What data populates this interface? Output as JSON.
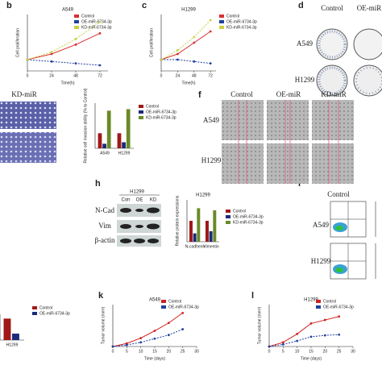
{
  "chart_data": [
    {
      "type": "line",
      "title": "A549",
      "x": [
        0,
        24,
        48,
        72
      ],
      "xlim": [
        0,
        80
      ],
      "xticks": [
        0,
        24,
        48,
        72
      ],
      "ylim": [
        0,
        1.5
      ],
      "xlabel": "Time(h)",
      "ylabel": "Cell proliferation",
      "series": [
        {
          "name": "Control",
          "color": "#d83030",
          "values": [
            0.3,
            0.45,
            0.7,
            1.0
          ]
        },
        {
          "name": "OE-miR-6734-3p",
          "color": "#2040a0",
          "values": [
            0.3,
            0.25,
            0.2,
            0.15
          ]
        },
        {
          "name": "KD-miR-6734-3p",
          "color": "#c8d040",
          "values": [
            0.3,
            0.5,
            0.85,
            1.3
          ]
        }
      ]
    },
    {
      "type": "line",
      "title": "H1299",
      "x": [
        0,
        24,
        48,
        72
      ],
      "xlim": [
        0,
        80
      ],
      "xticks": [
        0,
        24,
        48,
        72
      ],
      "ylim": [
        0,
        1.5
      ],
      "xlabel": "Time(h)",
      "ylabel": "Cell proliferation",
      "series": [
        {
          "name": "Control",
          "color": "#d83030",
          "values": [
            0.3,
            0.45,
            0.75,
            1.05
          ]
        },
        {
          "name": "OE-miR-6734-3p",
          "color": "#2040a0",
          "values": [
            0.3,
            0.3,
            0.25,
            0.2
          ]
        },
        {
          "name": "KD-miR-6734-3p",
          "color": "#c8d040",
          "values": [
            0.3,
            0.55,
            0.9,
            1.35
          ]
        }
      ]
    },
    {
      "type": "bar",
      "categories": [
        "A549",
        "H1299"
      ],
      "ylim": [
        0,
        3
      ],
      "ylabel": "Relative cell invasion ability (% to Control)",
      "series": [
        {
          "name": "Control",
          "color": "#a01818",
          "values": [
            1.0,
            1.0
          ]
        },
        {
          "name": "OE-miR-6734-3p",
          "color": "#1c2a78",
          "values": [
            0.3,
            0.4
          ]
        },
        {
          "name": "KD-miR-6734-3p",
          "color": "#6a8a28",
          "values": [
            2.5,
            2.6
          ]
        }
      ]
    },
    {
      "type": "bar",
      "title": "H1299",
      "categories": [
        "N-cadherin",
        "Vimentin"
      ],
      "ylim": [
        0,
        2
      ],
      "ylabel": "Relative protein expressions",
      "series": [
        {
          "name": "Control",
          "color": "#a01818",
          "values": [
            1.0,
            1.0
          ]
        },
        {
          "name": "OE-miR-6734-3p",
          "color": "#1c2a78",
          "values": [
            0.4,
            0.5
          ]
        },
        {
          "name": "KD-miR-6734-3p",
          "color": "#6a8a28",
          "values": [
            1.6,
            1.5
          ]
        }
      ]
    },
    {
      "type": "bar",
      "categories": [
        "H1299"
      ],
      "ylim": [
        0,
        6
      ],
      "series": [
        {
          "name": "Control",
          "color": "#a01818",
          "values": [
            5
          ]
        },
        {
          "name": "OE-miR-6734-3p",
          "color": "#1c2a78",
          "values": [
            1.5
          ]
        }
      ]
    },
    {
      "type": "line",
      "title": "A549",
      "x": [
        0,
        5,
        10,
        15,
        20,
        25
      ],
      "xlim": [
        0,
        30
      ],
      "xticks": [
        0,
        5,
        10,
        15,
        20,
        25,
        30
      ],
      "ylim": [
        0,
        800
      ],
      "xlabel": "Time (days)",
      "ylabel": "Tumor volume (mm³)",
      "series": [
        {
          "name": "Control",
          "color": "#d02020",
          "values": [
            0,
            60,
            160,
            300,
            450,
            640
          ]
        },
        {
          "name": "OE-miR-6734-3p",
          "color": "#2040a0",
          "values": [
            0,
            30,
            80,
            150,
            220,
            330
          ]
        }
      ]
    },
    {
      "type": "line",
      "title": "H1299",
      "x": [
        0,
        5,
        10,
        15,
        20,
        25
      ],
      "xlim": [
        0,
        30
      ],
      "xticks": [
        0,
        5,
        10,
        15,
        20,
        25,
        30
      ],
      "ylim": [
        0,
        600
      ],
      "xlabel": "Time (days)",
      "ylabel": "Tumor volume (mm³)",
      "series": [
        {
          "name": "Control",
          "color": "#d02020",
          "values": [
            0,
            60,
            180,
            330,
            380,
            430
          ]
        },
        {
          "name": "OE-miR-6734-3p",
          "color": "#2040a0",
          "values": [
            0,
            30,
            80,
            140,
            160,
            170
          ]
        }
      ]
    }
  ],
  "panels": {
    "letters": [
      "b",
      "c",
      "d",
      "f",
      "h",
      "i",
      "k",
      "l"
    ],
    "d": [
      "Control",
      "OE-miR",
      "A549",
      "H1299"
    ],
    "e": [
      "KD-miR"
    ],
    "f": [
      "Control",
      "OE-miR",
      "KD-miR",
      "A549",
      "H1299"
    ],
    "h": [
      "H1299",
      "Con",
      "OE",
      "KD",
      "N-Cad",
      "Vim",
      "β-actin"
    ],
    "i": [
      "Control",
      "A549",
      "H1299"
    ]
  }
}
